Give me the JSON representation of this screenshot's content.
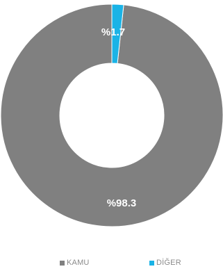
{
  "chart_data": {
    "type": "pie",
    "style": "donut",
    "title": "",
    "slices": [
      {
        "name": "KAMU",
        "value": 98.3,
        "label": "%98.3",
        "color": "#808080"
      },
      {
        "name": "DİĞER",
        "value": 1.7,
        "label": "%1.7",
        "color": "#1ab3e6"
      }
    ],
    "legend": "bottom"
  },
  "legend": {
    "items": [
      {
        "label": "KAMU",
        "color": "#808080"
      },
      {
        "label": "DİĞER",
        "color": "#1ab3e6"
      }
    ]
  }
}
